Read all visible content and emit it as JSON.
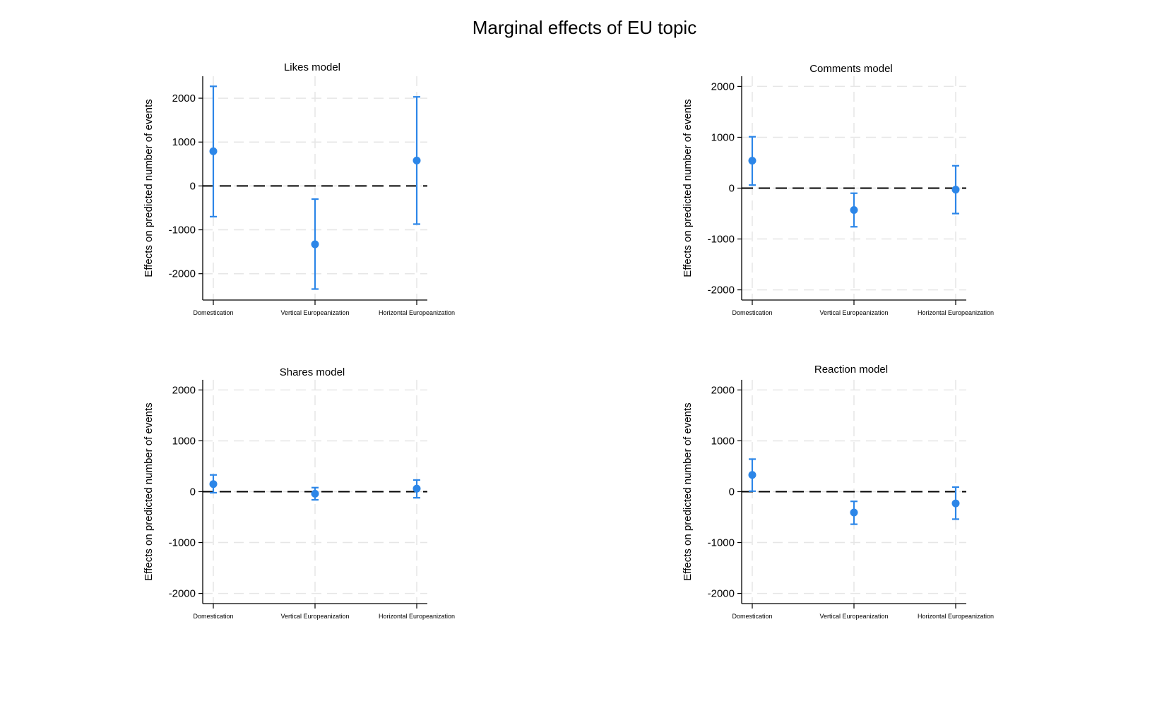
{
  "title": "Marginal effects of EU topic",
  "colors": {
    "marker": "#2c86e8",
    "zero_line": "#000000",
    "grid": "#e6e6e6"
  },
  "chart_data": [
    {
      "type": "scatter",
      "title": "Likes model",
      "ylabel": "Effects on predicted number of events",
      "categories": [
        "Domestication",
        "Vertical Europeanization",
        "Horizontal Europeanization"
      ],
      "yticks": [
        -2000,
        -1000,
        0,
        1000,
        2000
      ],
      "ylim": [
        -2600,
        2500
      ],
      "values": [
        790,
        -1330,
        580
      ],
      "ci_low": [
        -700,
        -2350,
        -870
      ],
      "ci_high": [
        2270,
        -300,
        2030
      ]
    },
    {
      "type": "scatter",
      "title": "Comments model",
      "ylabel": "Effects on predicted number of events",
      "categories": [
        "Domestication",
        "Vertical Europeanization",
        "Horizontal Europeanization"
      ],
      "yticks": [
        -2000,
        -1000,
        0,
        1000,
        2000
      ],
      "ylim": [
        -2200,
        2200
      ],
      "values": [
        540,
        -430,
        -30
      ],
      "ci_low": [
        60,
        -760,
        -500
      ],
      "ci_high": [
        1010,
        -100,
        440
      ]
    },
    {
      "type": "scatter",
      "title": "Shares model",
      "ylabel": "Effects on predicted number of events",
      "categories": [
        "Domestication",
        "Vertical Europeanization",
        "Horizontal Europeanization"
      ],
      "yticks": [
        -2000,
        -1000,
        0,
        1000,
        2000
      ],
      "ylim": [
        -2200,
        2200
      ],
      "values": [
        150,
        -40,
        60
      ],
      "ci_low": [
        -20,
        -160,
        -120
      ],
      "ci_high": [
        330,
        80,
        230
      ]
    },
    {
      "type": "scatter",
      "title": "Reaction model",
      "ylabel": "Effects on predicted number of events",
      "categories": [
        "Domestication",
        "Vertical Europeanization",
        "Horizontal Europeanization"
      ],
      "yticks": [
        -2000,
        -1000,
        0,
        1000,
        2000
      ],
      "ylim": [
        -2200,
        2200
      ],
      "values": [
        330,
        -410,
        -230
      ],
      "ci_low": [
        10,
        -640,
        -540
      ],
      "ci_high": [
        640,
        -190,
        90
      ]
    }
  ]
}
